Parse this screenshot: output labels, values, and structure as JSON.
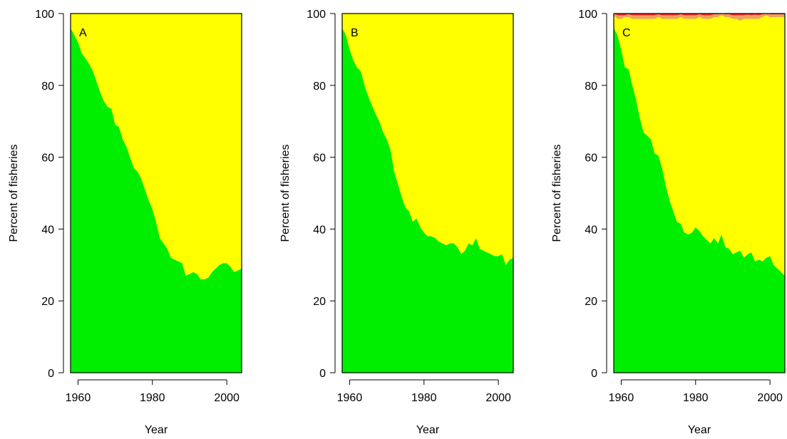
{
  "chart_data": [
    {
      "type": "area",
      "panel_label": "A",
      "xlabel": "Year",
      "ylabel": "Percent of fisheries",
      "xlim": [
        1958,
        2004
      ],
      "ylim": [
        0,
        100
      ],
      "xticks": [
        1960,
        1980,
        2000
      ],
      "yticks": [
        0,
        20,
        40,
        60,
        80,
        100
      ],
      "grid": false,
      "stacked": true,
      "x": [
        1958,
        1959,
        1960,
        1961,
        1962,
        1963,
        1964,
        1965,
        1966,
        1967,
        1968,
        1969,
        1970,
        1971,
        1972,
        1973,
        1974,
        1975,
        1976,
        1977,
        1978,
        1979,
        1980,
        1981,
        1982,
        1983,
        1984,
        1985,
        1986,
        1987,
        1988,
        1989,
        1990,
        1991,
        1992,
        1993,
        1994,
        1995,
        1996,
        1997,
        1998,
        1999,
        2000,
        2001,
        2002,
        2003,
        2004
      ],
      "series": [
        {
          "color": "#00ee00",
          "values": [
            96,
            94,
            92,
            89,
            87.5,
            86,
            84,
            81,
            78,
            75.5,
            74,
            73.5,
            69,
            68.5,
            65,
            63,
            60,
            57,
            56,
            54,
            51,
            48,
            45.5,
            42,
            37.5,
            36,
            34.5,
            32,
            31.5,
            31,
            30.5,
            27,
            27.5,
            28,
            27.5,
            26,
            26,
            26.5,
            28,
            29,
            30,
            30.5,
            30.5,
            29.5,
            28,
            28.5,
            29
          ]
        },
        {
          "color": "#ffff00",
          "values": [
            4,
            6,
            8,
            11,
            12.5,
            14,
            16,
            19,
            22,
            24.5,
            26,
            26.5,
            31,
            31.5,
            35,
            37,
            40,
            43,
            44,
            46,
            49,
            52,
            54.5,
            58,
            62.5,
            64,
            65.5,
            68,
            68.5,
            69,
            69.5,
            73,
            72.5,
            72,
            72.5,
            74,
            74,
            73.5,
            72,
            71,
            70,
            69.5,
            69.5,
            70.5,
            72,
            71.5,
            71
          ]
        }
      ]
    },
    {
      "type": "area",
      "panel_label": "B",
      "xlabel": "Year",
      "ylabel": "Percent of fisheries",
      "xlim": [
        1958,
        2004
      ],
      "ylim": [
        0,
        100
      ],
      "xticks": [
        1960,
        1980,
        2000
      ],
      "yticks": [
        0,
        20,
        40,
        60,
        80,
        100
      ],
      "grid": false,
      "stacked": true,
      "x": [
        1958,
        1959,
        1960,
        1961,
        1962,
        1963,
        1964,
        1965,
        1966,
        1967,
        1968,
        1969,
        1970,
        1971,
        1972,
        1973,
        1974,
        1975,
        1976,
        1977,
        1978,
        1979,
        1980,
        1981,
        1982,
        1983,
        1984,
        1985,
        1986,
        1987,
        1988,
        1989,
        1990,
        1991,
        1992,
        1993,
        1994,
        1995,
        1996,
        1997,
        1998,
        1999,
        2000,
        2001,
        2002,
        2003,
        2004
      ],
      "series": [
        {
          "color": "#00ee00",
          "values": [
            96,
            94,
            90,
            87,
            85,
            84,
            80,
            77,
            74.5,
            72,
            70,
            67,
            65,
            62,
            56,
            52.5,
            49,
            46,
            45,
            42,
            43,
            40.5,
            39,
            38,
            38,
            37.5,
            36.5,
            36,
            35.5,
            36,
            36,
            35,
            33,
            34,
            36,
            35.5,
            37.5,
            34.5,
            34,
            33.5,
            33,
            32.5,
            32.5,
            33,
            30,
            31.5,
            32
          ]
        },
        {
          "color": "#ffff00",
          "values": [
            4,
            6,
            10,
            13,
            15,
            16,
            20,
            23,
            25.5,
            28,
            30,
            33,
            35,
            38,
            44,
            47.5,
            51,
            54,
            55,
            58,
            57,
            59.5,
            61,
            62,
            62,
            62.5,
            63.5,
            64,
            64.5,
            64,
            64,
            65,
            67,
            66,
            64,
            64.5,
            62.5,
            65.5,
            66,
            66.5,
            67,
            67.5,
            67.5,
            67,
            70,
            68.5,
            68
          ]
        }
      ]
    },
    {
      "type": "area",
      "panel_label": "C",
      "xlabel": "Year",
      "ylabel": "Percent of fisheries",
      "xlim": [
        1958,
        2004
      ],
      "ylim": [
        0,
        100
      ],
      "xticks": [
        1960,
        1980,
        2000
      ],
      "yticks": [
        0,
        20,
        40,
        60,
        80,
        100
      ],
      "grid": false,
      "stacked": true,
      "x": [
        1958,
        1959,
        1960,
        1961,
        1962,
        1963,
        1964,
        1965,
        1966,
        1967,
        1968,
        1969,
        1970,
        1971,
        1972,
        1973,
        1974,
        1975,
        1976,
        1977,
        1978,
        1979,
        1980,
        1981,
        1982,
        1983,
        1984,
        1985,
        1986,
        1987,
        1988,
        1989,
        1990,
        1991,
        1992,
        1993,
        1994,
        1995,
        1996,
        1997,
        1998,
        1999,
        2000,
        2001,
        2002,
        2003,
        2004
      ],
      "series": [
        {
          "color": "#00ee00",
          "values": [
            96,
            94,
            90,
            85,
            84.5,
            80,
            76,
            71,
            67,
            66,
            65,
            61,
            60.5,
            57,
            52,
            48,
            45,
            42,
            41.5,
            39,
            38.5,
            39,
            40.5,
            39.5,
            38,
            37,
            36,
            37.5,
            36,
            38.5,
            35,
            34.5,
            33,
            33.5,
            34,
            32,
            33,
            33.5,
            31,
            31.5,
            31,
            32,
            32.5,
            30,
            29,
            28,
            27
          ]
        },
        {
          "color": "#ffff00",
          "values": [
            3.5,
            4.5,
            8.5,
            14,
            14.5,
            18.5,
            22.5,
            27.5,
            31.5,
            32.5,
            33.5,
            37.5,
            38.5,
            41.5,
            46.5,
            50.5,
            53.5,
            56.5,
            57.5,
            59.5,
            60,
            59.5,
            58,
            59.5,
            60.5,
            61.5,
            62.5,
            61.5,
            63,
            61,
            64,
            64.5,
            65.5,
            65,
            64,
            66.5,
            65.5,
            65,
            67.5,
            67,
            68,
            67.5,
            66.5,
            69,
            70,
            71,
            72
          ]
        },
        {
          "color": "#f0a060",
          "values": [
            0.5,
            1,
            1,
            0.5,
            0.8,
            1,
            1,
            1,
            1,
            1,
            1,
            1,
            0.8,
            1,
            1,
            1,
            1,
            1,
            0.8,
            1,
            1,
            1,
            1,
            0.8,
            1,
            1,
            1,
            0.8,
            0.8,
            0.5,
            0.8,
            0.8,
            1,
            1,
            1.5,
            1,
            1.2,
            1,
            1.2,
            1,
            0.8,
            0.5,
            0.8,
            0.8,
            0.8,
            0.8,
            0.8
          ]
        },
        {
          "color": "#ff2020",
          "values": [
            0,
            0.5,
            0.5,
            0.5,
            0.2,
            0.5,
            0.5,
            0.5,
            0.5,
            0.5,
            0.5,
            0.5,
            0.2,
            0.5,
            0.5,
            0.5,
            0.5,
            0.5,
            0.2,
            0.5,
            0.5,
            0.5,
            0.5,
            0.2,
            0.5,
            0.5,
            0.5,
            0.2,
            0.2,
            0,
            0.2,
            0.2,
            0.5,
            0.5,
            0.5,
            0.5,
            0.3,
            0.5,
            0.3,
            0.5,
            0.2,
            0,
            0.2,
            0.2,
            0.2,
            0.2,
            0.2
          ]
        }
      ]
    }
  ]
}
